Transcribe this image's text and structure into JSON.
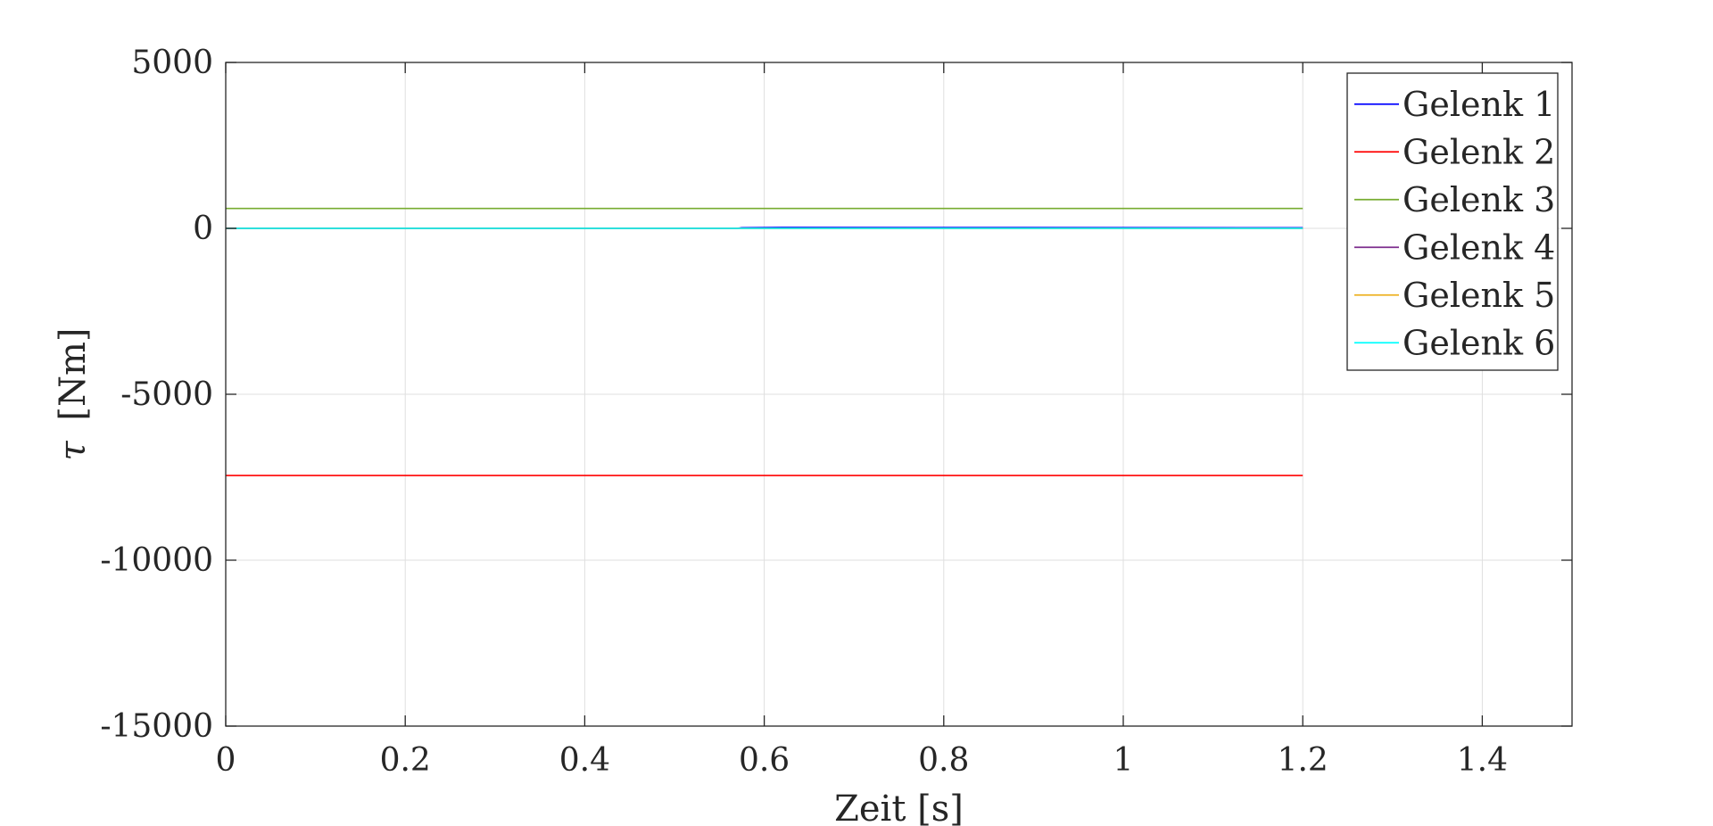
{
  "chart_data": {
    "type": "line",
    "title": "",
    "xlabel": "Zeit [s]",
    "ylabel_symbol": "τ",
    "ylabel_unit": "[Nm]",
    "xlim": [
      0,
      1.5
    ],
    "ylim": [
      -15000,
      5000
    ],
    "xticks": [
      0,
      0.2,
      0.4,
      0.6,
      0.8,
      1,
      1.2,
      1.4
    ],
    "xtick_labels": [
      "0",
      "0.2",
      "0.4",
      "0.6",
      "0.8",
      "1",
      "1.2",
      "1.4"
    ],
    "yticks": [
      5000,
      0,
      -5000,
      -10000,
      -15000
    ],
    "ytick_labels": [
      "5000",
      "0",
      "-5000",
      "-10000",
      "-15000"
    ],
    "grid": true,
    "legend_position": "top-right",
    "series": [
      {
        "name": "Gelenk 1",
        "color": "#0000ff",
        "x": [
          0,
          0.57,
          0.575,
          0.62,
          1.2
        ],
        "y": [
          0,
          0,
          20,
          30,
          20
        ]
      },
      {
        "name": "Gelenk 2",
        "color": "#ff0000",
        "x": [
          0,
          1.2
        ],
        "y": [
          -7450,
          -7450
        ]
      },
      {
        "name": "Gelenk 3",
        "color": "#77ac30",
        "x": [
          0,
          1.2
        ],
        "y": [
          600,
          600
        ]
      },
      {
        "name": "Gelenk 4",
        "color": "#7e2f8e",
        "x": [
          0,
          1.2
        ],
        "y": [
          0,
          0
        ]
      },
      {
        "name": "Gelenk 5",
        "color": "#edb120",
        "x": [
          0,
          1.2
        ],
        "y": [
          0,
          0
        ]
      },
      {
        "name": "Gelenk 6",
        "color": "#00ffff",
        "x": [
          0,
          1.2
        ],
        "y": [
          0,
          0
        ]
      }
    ]
  }
}
